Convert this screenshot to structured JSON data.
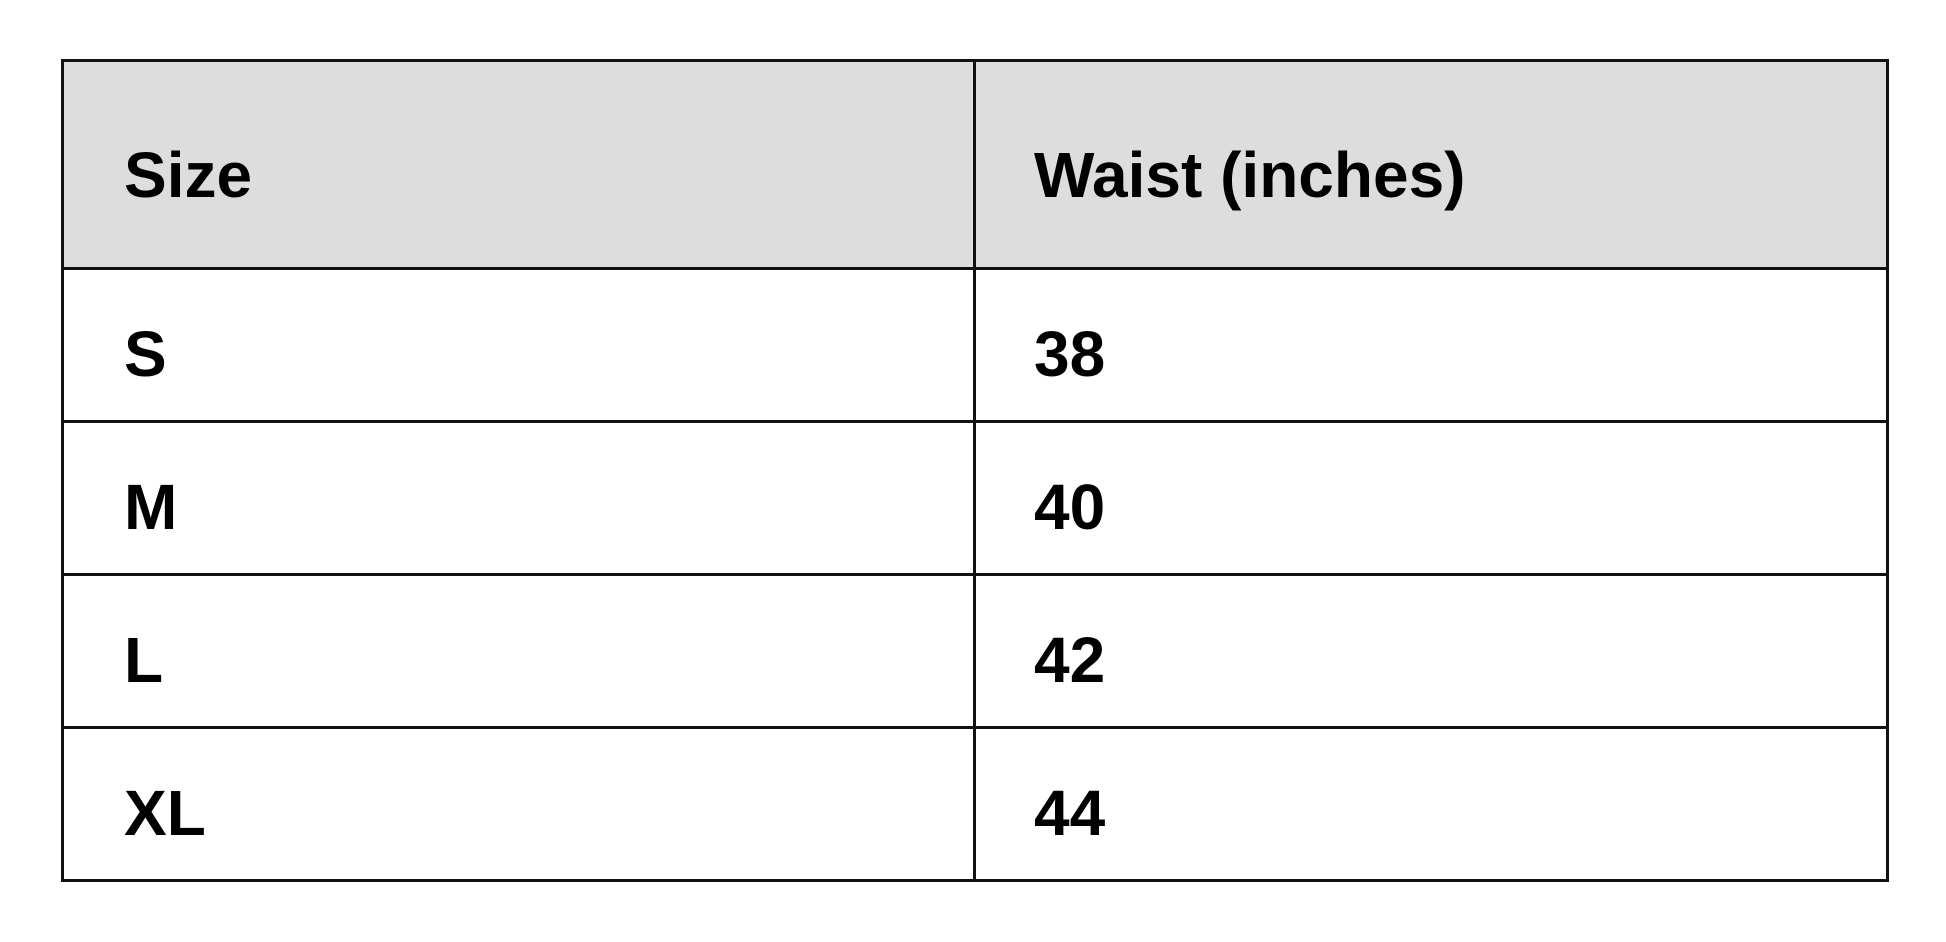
{
  "table": {
    "headers": [
      "Size",
      "Waist (inches)"
    ],
    "rows": [
      [
        "S",
        "38"
      ],
      [
        "M",
        "40"
      ],
      [
        "L",
        "42"
      ],
      [
        "XL",
        "44"
      ]
    ],
    "header_bg": "#dddddd"
  }
}
